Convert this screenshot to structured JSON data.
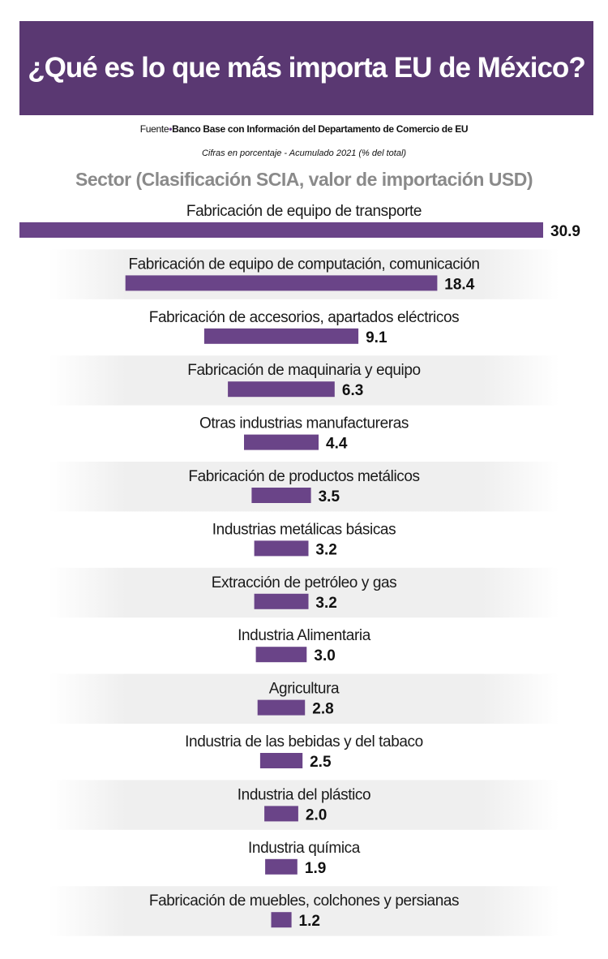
{
  "header": {
    "title": "¿Qué es lo que más importa EU de México?"
  },
  "source": {
    "prefix": "Fuente",
    "text": "Banco Base con Información del Departamento de Comercio de EU"
  },
  "units_note": "Cifras en porcentaje - Acumulado 2021 (% del total)",
  "colors": {
    "accent": "#5a3872",
    "bar": "#6a4488",
    "title_gray": "#8a8a8a",
    "band": "#efefef"
  },
  "chart_data": {
    "type": "bar",
    "orientation": "horizontal",
    "title": "Sector (Clasificación SCIA, valor de importación USD)",
    "categories": [
      "Fabricación de equipo de transporte",
      "Fabricación de equipo de computación, comunicación",
      "Fabricación de accesorios, apartados eléctricos",
      "Fabricación de maquinaria y equipo",
      "Otras industrias manufactureras",
      "Fabricación de productos metálicos",
      "Industrias metálicas básicas",
      "Extracción de petróleo y gas",
      "Industria Alimentaria",
      "Agricultura",
      "Industria de las bebidas y del tabaco",
      "Industria del plástico",
      "Industria química",
      "Fabricación de muebles, colchones y persianas"
    ],
    "values": [
      30.9,
      18.4,
      9.1,
      6.3,
      4.4,
      3.5,
      3.2,
      3.2,
      3.0,
      2.8,
      2.5,
      2.0,
      1.9,
      1.2
    ],
    "value_labels": [
      "30.9",
      "18.4",
      "9.1",
      "6.3",
      "4.4",
      "3.5",
      "3.2",
      "3.2",
      "3.0",
      "2.8",
      "2.5",
      "2.0",
      "1.9",
      "1.2"
    ]
  }
}
